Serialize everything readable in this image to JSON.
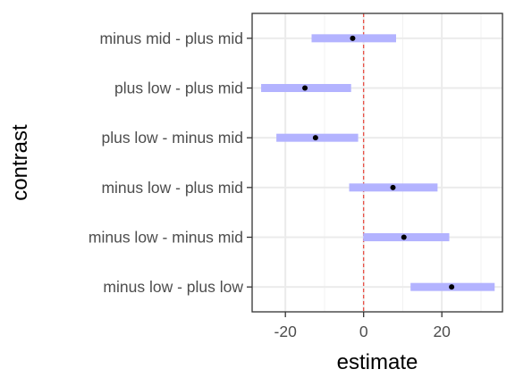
{
  "chart_data": {
    "type": "interval",
    "xlabel": "estimate",
    "ylabel": "contrast",
    "xlim": [
      -28.5,
      35.5
    ],
    "x_ticks": [
      -20,
      0,
      20
    ],
    "x_tick_labels": [
      "-20",
      "0",
      "20"
    ],
    "reference_line": {
      "x": 0,
      "color": "#e8443a",
      "style": "dashed"
    },
    "interval_color": "#b3b3ff",
    "point_color": "#000000",
    "grid": true,
    "categories": [
      "minus mid - plus mid",
      "plus low - plus mid",
      "plus low - minus mid",
      "minus low - plus mid",
      "minus low - minus mid",
      "minus low - plus low"
    ],
    "estimates": [
      -2.8,
      -15.0,
      -12.3,
      7.5,
      10.3,
      22.5
    ],
    "lower": [
      -13.3,
      -26.2,
      -22.3,
      -3.7,
      -0.1,
      12.0
    ],
    "upper": [
      8.3,
      -3.2,
      -1.4,
      18.9,
      21.9,
      33.5
    ]
  }
}
